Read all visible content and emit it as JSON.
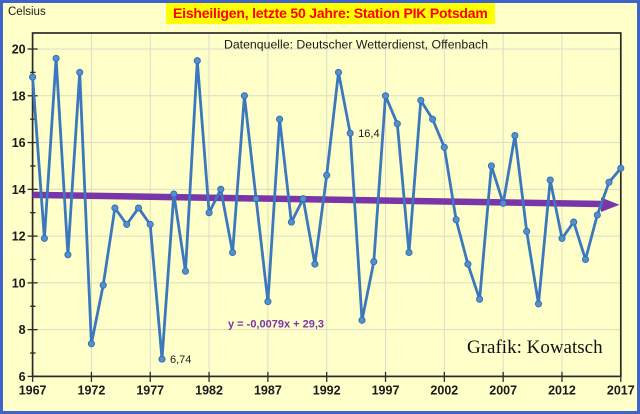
{
  "page": {
    "title": "Eisheiligen, letzte 50 Jahre: Station PIK Potsdam",
    "unit_label": "Celsius"
  },
  "chart_data": {
    "type": "line",
    "title": "Eisheiligen, letzte 50 Jahre: Station PIK Potsdam",
    "subtitle": "Datenquelle: Deutscher Wetterdienst, Offenbach",
    "ylabel": "Celsius",
    "ylim": [
      6,
      20
    ],
    "ytick_step": 2,
    "xlim": [
      1967,
      2017
    ],
    "xticks": [
      1967,
      1972,
      1977,
      1982,
      1987,
      1992,
      1997,
      2002,
      2007,
      2012,
      2017
    ],
    "grid": true,
    "x": [
      1967,
      1968,
      1969,
      1970,
      1971,
      1972,
      1973,
      1974,
      1975,
      1976,
      1977,
      1978,
      1979,
      1980,
      1981,
      1982,
      1983,
      1984,
      1985,
      1986,
      1987,
      1988,
      1989,
      1990,
      1991,
      1992,
      1993,
      1994,
      1995,
      1996,
      1997,
      1998,
      1999,
      2000,
      2001,
      2002,
      2003,
      2004,
      2005,
      2006,
      2007,
      2008,
      2009,
      2010,
      2011,
      2012,
      2013,
      2014,
      2015,
      2016,
      2017
    ],
    "values": [
      18.8,
      11.9,
      19.6,
      11.2,
      19.0,
      7.4,
      9.9,
      13.2,
      12.5,
      13.2,
      12.5,
      6.74,
      13.8,
      10.5,
      19.5,
      13.0,
      14.0,
      11.3,
      18.0,
      13.6,
      9.2,
      17.0,
      12.6,
      13.6,
      10.8,
      14.6,
      19.0,
      16.4,
      8.4,
      10.9,
      18.0,
      16.8,
      11.3,
      17.8,
      17.0,
      15.8,
      12.7,
      10.8,
      9.3,
      15.0,
      13.4,
      16.3,
      12.2,
      9.1,
      14.4,
      11.9,
      12.6,
      11.0,
      12.9,
      14.3,
      14.9
    ],
    "annotations": [
      {
        "year": 1978,
        "label": "6,74"
      },
      {
        "year": 1994,
        "label": "16,4"
      }
    ],
    "trendline": {
      "equation_label": "y = -0,0079x + 29,3",
      "slope": -0.0079,
      "intercept": 29.3
    },
    "watermark": "Grafik: Kowatsch",
    "colors": {
      "background": "#ffffc9",
      "frame": "#3f63c8",
      "line": "#3b78bd",
      "marker": "#5590cc",
      "marker_edge": "#2e6cb0",
      "trend": "#7a35a8",
      "title_bg": "#ffff00",
      "title_text": "#ff0000",
      "axis": "#2b2b2b",
      "gridline": "#dcdcc8",
      "text": "#1a1a1a"
    }
  }
}
